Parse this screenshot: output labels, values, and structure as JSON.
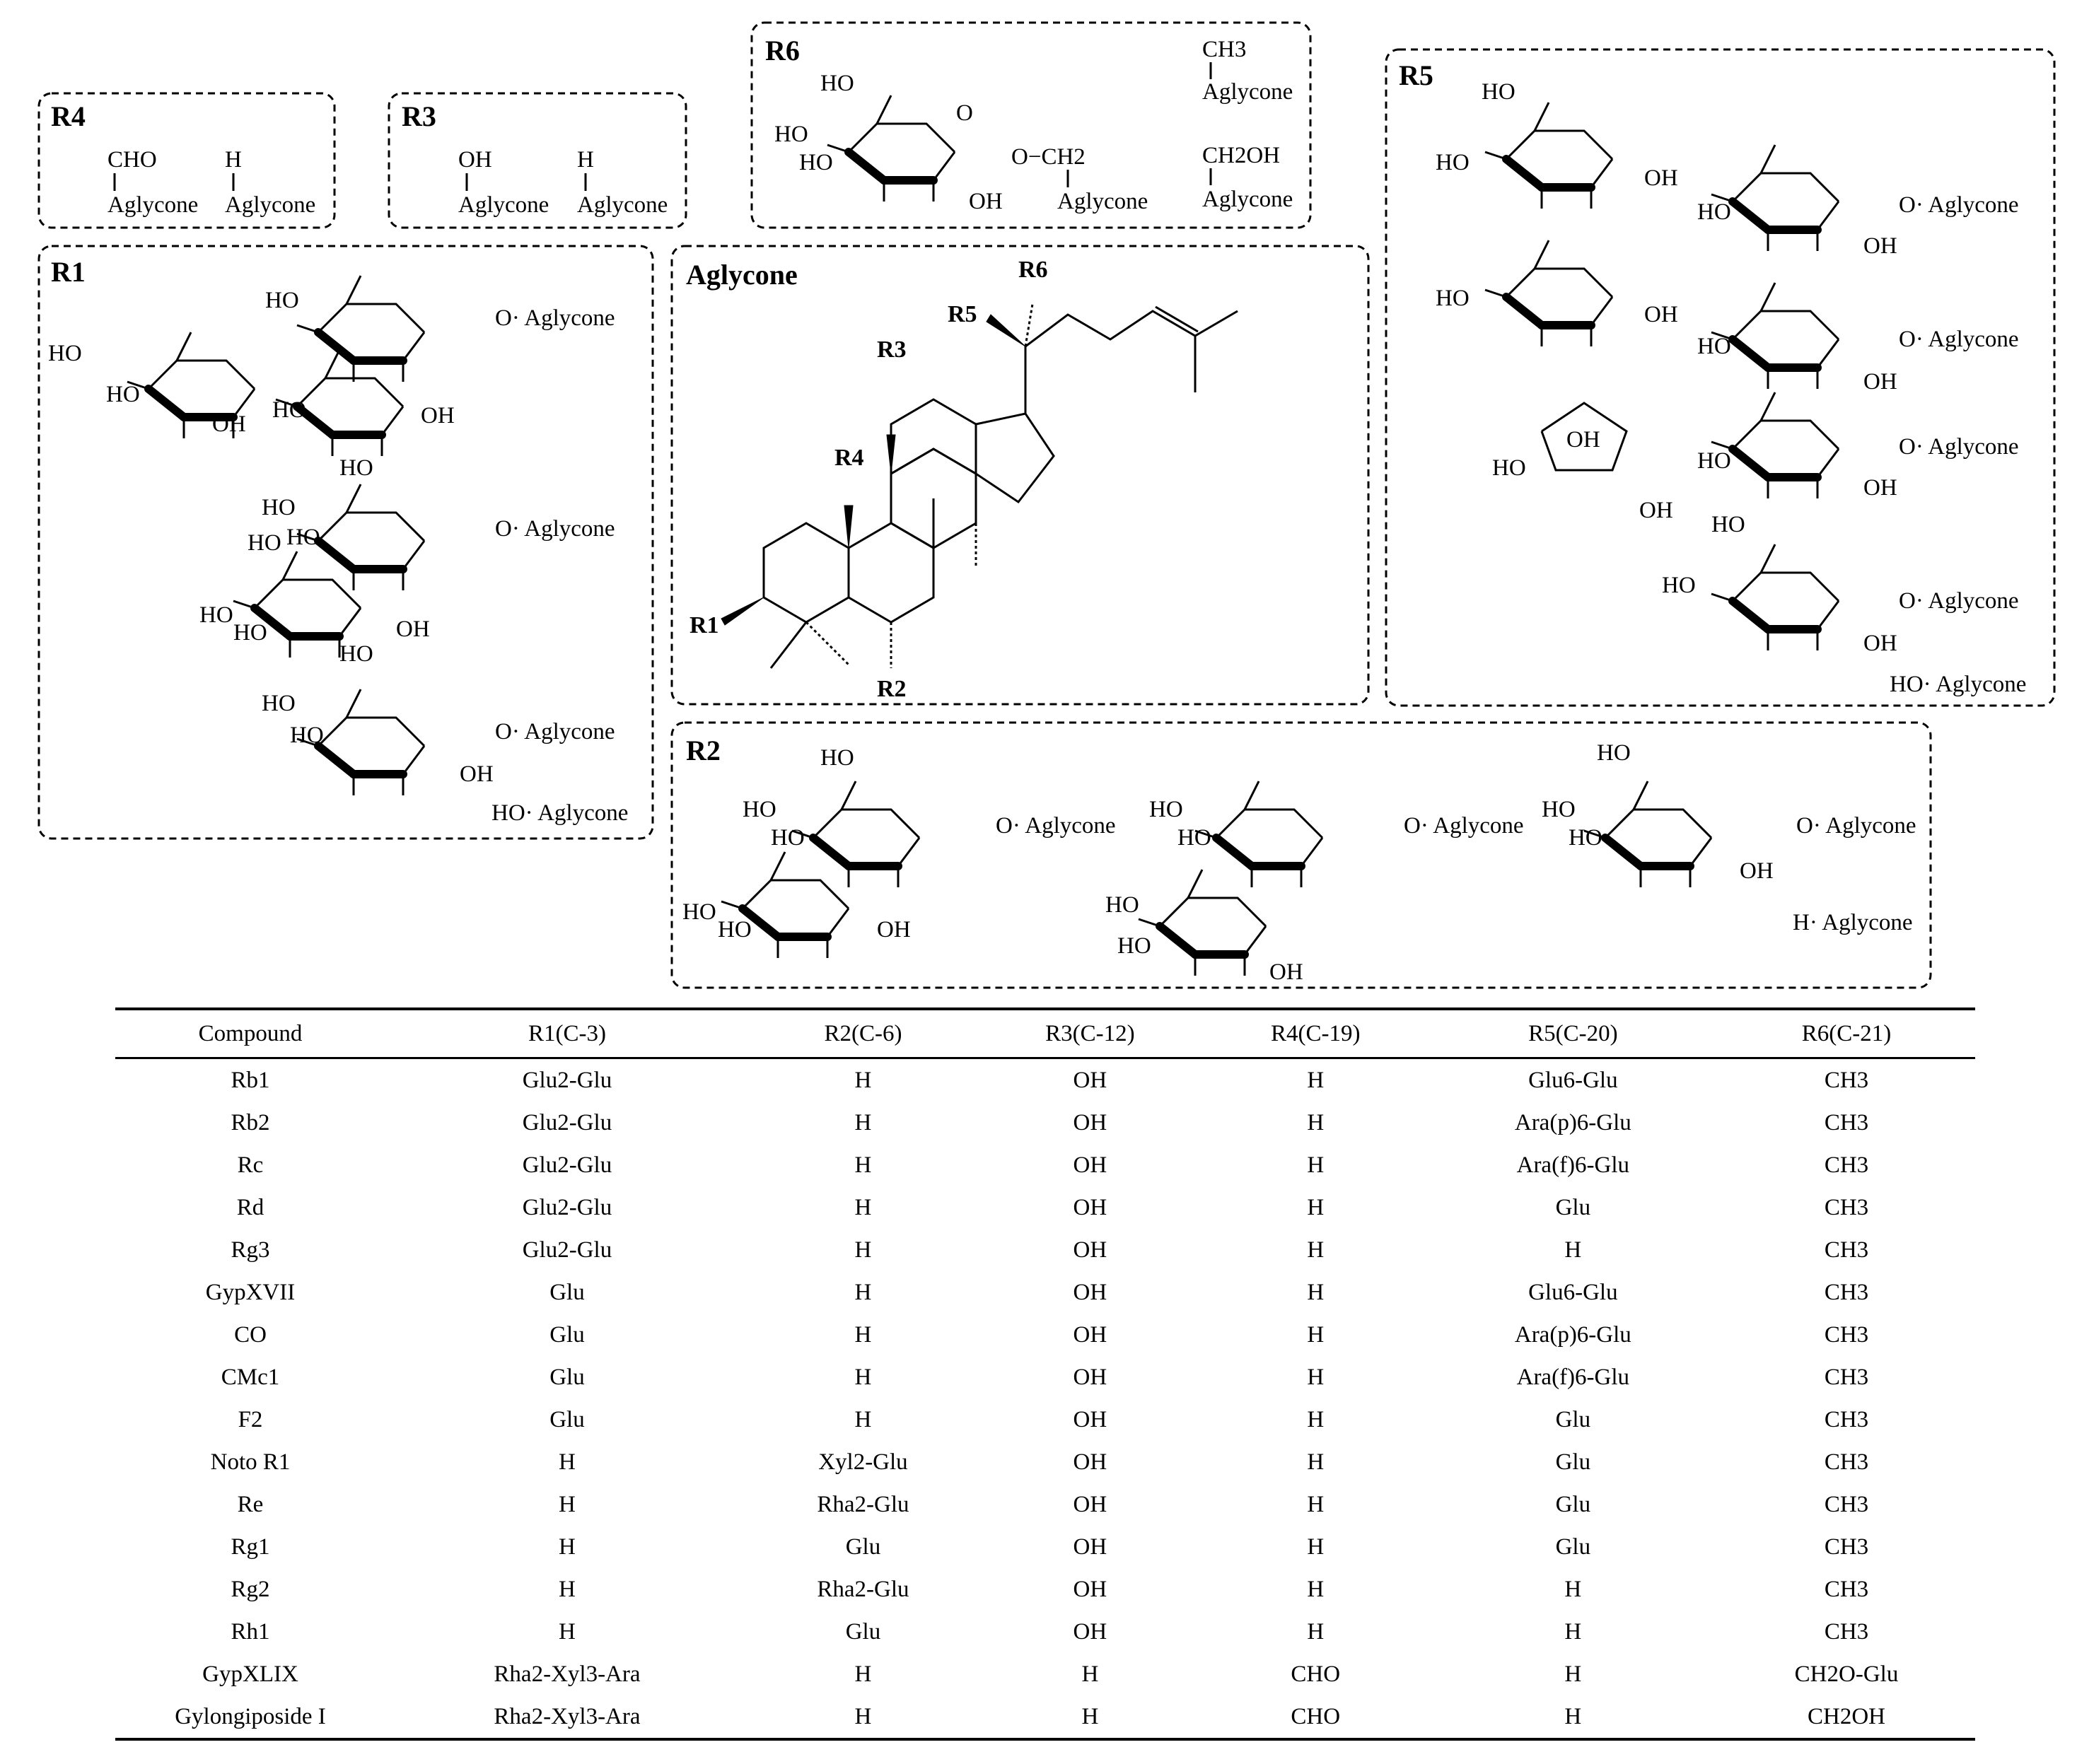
{
  "panels": {
    "r4": {
      "title": "R4",
      "options": [
        {
          "group": "CHO",
          "base": "Aglycone"
        },
        {
          "group": "H",
          "base": "Aglycone"
        }
      ]
    },
    "r3": {
      "title": "R3",
      "options": [
        {
          "group": "OH",
          "base": "Aglycone"
        },
        {
          "group": "H",
          "base": "Aglycone"
        }
      ]
    },
    "r6": {
      "title": "R6",
      "sugar_link": "O−CH2",
      "sugar_base": "Aglycone",
      "options": [
        {
          "group": "CH3",
          "base": "Aglycone"
        },
        {
          "group": "CH2OH",
          "base": "Aglycone"
        }
      ]
    },
    "r5": {
      "title": "R5",
      "link_label": "O· Aglycone",
      "plain_option": "HO· Aglycone"
    },
    "r1": {
      "title": "R1",
      "link_label": "O· Aglycone",
      "plain_option": "HO· Aglycone"
    },
    "r2": {
      "title": "R2",
      "link_label": "O· Aglycone",
      "plain_option": "H· Aglycone"
    },
    "aglycone": {
      "title": "Aglycone",
      "substituents": [
        "R1",
        "R2",
        "R3",
        "R4",
        "R5",
        "R6"
      ]
    }
  },
  "sugar_labels": {
    "ho": "HO",
    "oh": "OH",
    "o": "O"
  },
  "table": {
    "headers": [
      "Compound",
      "R1(C-3)",
      "R2(C-6)",
      "R3(C-12)",
      "R4(C-19)",
      "R5(C-20)",
      "R6(C-21)"
    ],
    "rows": [
      [
        "Rb1",
        "Glu2-Glu",
        "H",
        "OH",
        "H",
        "Glu6-Glu",
        "CH3"
      ],
      [
        "Rb2",
        "Glu2-Glu",
        "H",
        "OH",
        "H",
        "Ara(p)6-Glu",
        "CH3"
      ],
      [
        "Rc",
        "Glu2-Glu",
        "H",
        "OH",
        "H",
        "Ara(f)6-Glu",
        "CH3"
      ],
      [
        "Rd",
        "Glu2-Glu",
        "H",
        "OH",
        "H",
        "Glu",
        "CH3"
      ],
      [
        "Rg3",
        "Glu2-Glu",
        "H",
        "OH",
        "H",
        "H",
        "CH3"
      ],
      [
        "GypXVII",
        "Glu",
        "H",
        "OH",
        "H",
        "Glu6-Glu",
        "CH3"
      ],
      [
        "CO",
        "Glu",
        "H",
        "OH",
        "H",
        "Ara(p)6-Glu",
        "CH3"
      ],
      [
        "CMc1",
        "Glu",
        "H",
        "OH",
        "H",
        "Ara(f)6-Glu",
        "CH3"
      ],
      [
        "F2",
        "Glu",
        "H",
        "OH",
        "H",
        "Glu",
        "CH3"
      ],
      [
        "Noto R1",
        "H",
        "Xyl2-Glu",
        "OH",
        "H",
        "Glu",
        "CH3"
      ],
      [
        "Re",
        "H",
        "Rha2-Glu",
        "OH",
        "H",
        "Glu",
        "CH3"
      ],
      [
        "Rg1",
        "H",
        "Glu",
        "OH",
        "H",
        "Glu",
        "CH3"
      ],
      [
        "Rg2",
        "H",
        "Rha2-Glu",
        "OH",
        "H",
        "H",
        "CH3"
      ],
      [
        "Rh1",
        "H",
        "Glu",
        "OH",
        "H",
        "H",
        "CH3"
      ],
      [
        "GypXLIX",
        "Rha2-Xyl3-Ara",
        "H",
        "H",
        "CHO",
        "H",
        "CH2O-Glu"
      ],
      [
        "Gylongiposide I",
        "Rha2-Xyl3-Ara",
        "H",
        "H",
        "CHO",
        "H",
        "CH2OH"
      ]
    ]
  }
}
